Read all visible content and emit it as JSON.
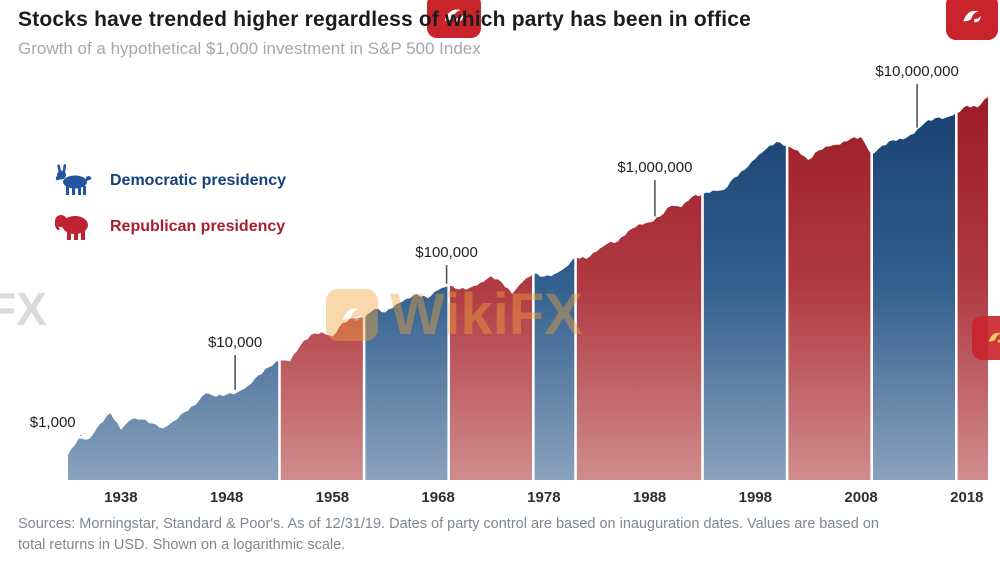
{
  "header": {
    "title": "Stocks have trended higher regardless of which party has been in office",
    "subtitle": "Growth of a hypothetical $1,000 investment in S&P 500 Index"
  },
  "legend": {
    "democratic": "Democratic presidency",
    "republican": "Republican presidency"
  },
  "footer": {
    "line1": "Sources: Morningstar, Standard & Poor's. As of 12/31/19. Dates of party control are based on inauguration dates. Values are based on",
    "line2": "total returns in USD. Shown on a logarithmic scale."
  },
  "watermark": {
    "text": "WikiFX",
    "partial_text": "FX"
  },
  "colors": {
    "democratic_label": "#16417e",
    "republican_label": "#a81e2e",
    "donkey": "#2355a0",
    "elephant": "#c02231",
    "gradient_dem": [
      "#173f70",
      "#33608f",
      "#8aa2bd"
    ],
    "gradient_rep": [
      "#9c1b26",
      "#b03a42",
      "#d08c8c"
    ]
  },
  "chart_data": {
    "type": "area",
    "scale": "log",
    "title": "Stocks have trended higher regardless of which party has been in office",
    "subtitle": "Growth of a hypothetical $1,000 investment in S&P 500 Index",
    "x_years_range": [
      1933,
      2020
    ],
    "x_ticks": [
      1938,
      1948,
      1958,
      1968,
      1978,
      1988,
      1998,
      2008,
      2018
    ],
    "ylim": [
      1000,
      10000000
    ],
    "annotations": [
      {
        "label": "$1,000",
        "year": 1934.2,
        "label_y": 414,
        "dx": -28
      },
      {
        "label": "$10,000",
        "year": 1948.8,
        "label_y": 334,
        "dx": 0
      },
      {
        "label": "$100,000",
        "year": 1968.8,
        "label_y": 244,
        "dx": 0
      },
      {
        "label": "$1,000,000",
        "year": 1988.5,
        "label_y": 159,
        "dx": 0
      },
      {
        "label": "$10,000,000",
        "year": 2013.3,
        "label_y": 63,
        "dx": 0
      }
    ],
    "party_segments": [
      {
        "party": "Democratic",
        "start_year": 1933,
        "end_year": 1953
      },
      {
        "party": "Republican",
        "start_year": 1953,
        "end_year": 1961
      },
      {
        "party": "Democratic",
        "start_year": 1961,
        "end_year": 1969
      },
      {
        "party": "Republican",
        "start_year": 1969,
        "end_year": 1977
      },
      {
        "party": "Democratic",
        "start_year": 1977,
        "end_year": 1981
      },
      {
        "party": "Republican",
        "start_year": 1981,
        "end_year": 1993
      },
      {
        "party": "Democratic",
        "start_year": 1993,
        "end_year": 2001
      },
      {
        "party": "Republican",
        "start_year": 2001,
        "end_year": 2009
      },
      {
        "party": "Democratic",
        "start_year": 2009,
        "end_year": 2017
      },
      {
        "party": "Republican",
        "start_year": 2017,
        "end_year": 2020
      }
    ],
    "series": {
      "name": "Value of hypothetical $1,000 investment in S&P 500 Index (USD)",
      "value_note": "values[i] = investment value at the start of year 1933+i; values[0] is the initial $1,000",
      "values": [
        1000,
        1540,
        1520,
        2240,
        2990,
        1940,
        2540,
        2530,
        2280,
        2020,
        2430,
        3060,
        3660,
        5000,
        4600,
        4860,
        5130,
        6080,
        8000,
        9920,
        11750,
        11630,
        17750,
        23350,
        24880,
        22200,
        31830,
        35650,
        35980,
        45660,
        41690,
        51190,
        59640,
        67100,
        60390,
        74880,
        83180,
        76110,
        79160,
        90480,
        107670,
        91840,
        67500,
        92610,
        114660,
        106410,
        113430,
        134300,
        177820,
        169110,
        205300,
        251490,
        267330,
        352070,
        417910,
        440060,
        513110,
        675760,
        654810,
        854530,
        919470,
        1012340,
        1025500,
        1411090,
        1735640,
        2315350,
        2977540,
        3602830,
        3274970,
        2885250,
        2247610,
        2892670,
        3208000,
        3365190,
        3896890,
        4111220,
        2590070,
        3276440,
        3767910,
        3847040,
        4462570,
        5908450,
        6717910,
        6811970,
        7629410,
        9292220,
        8892650,
        11693930
      ]
    }
  }
}
